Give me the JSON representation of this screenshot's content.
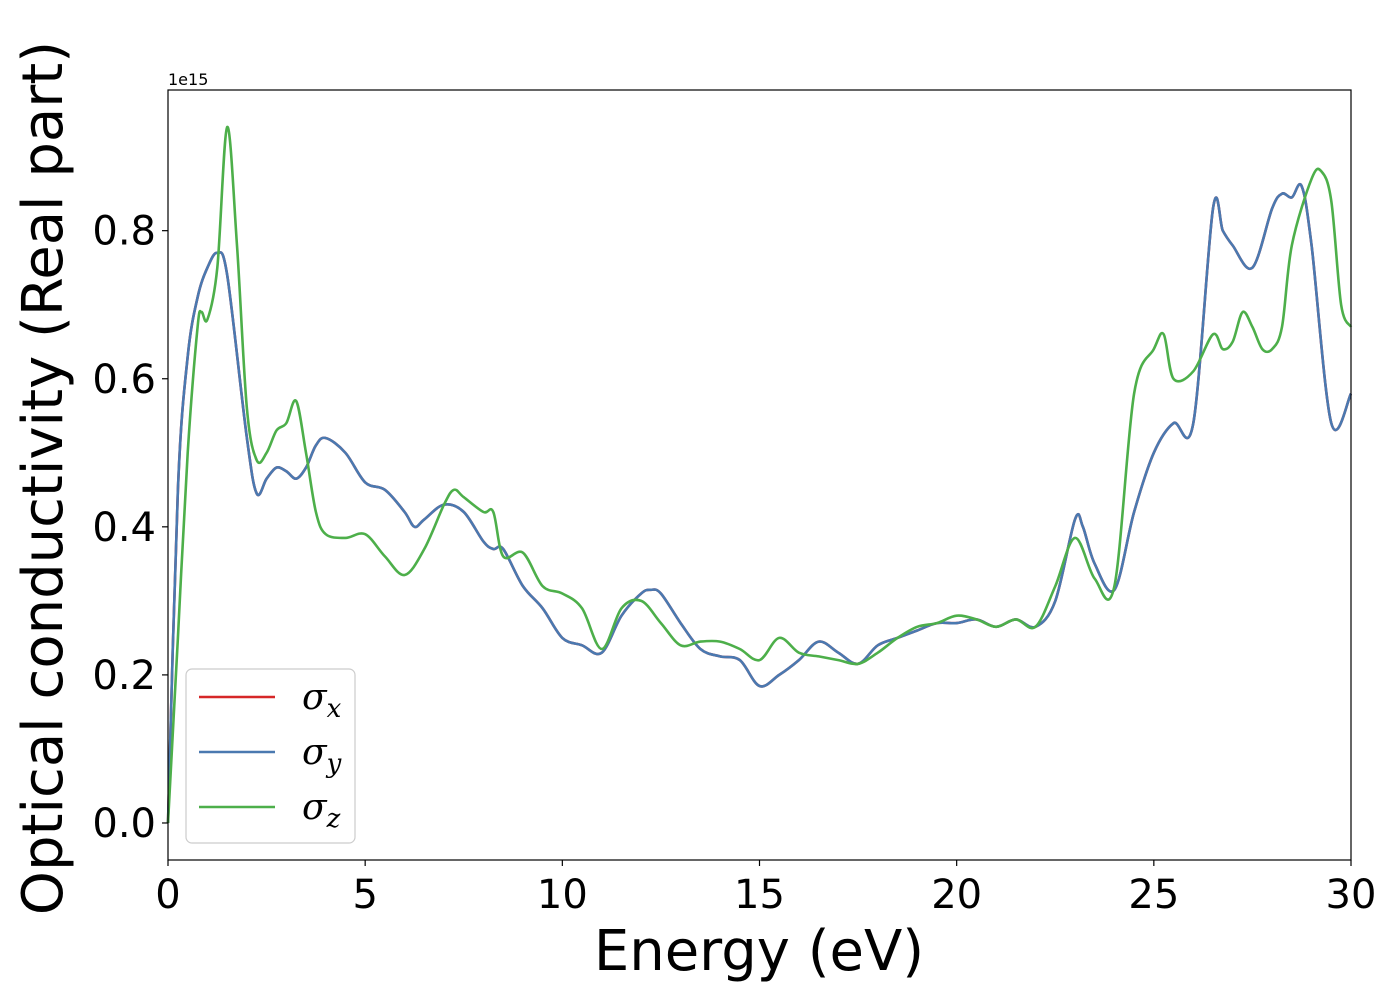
{
  "chart_data": {
    "type": "line",
    "title": "",
    "xlabel": "Energy (eV)",
    "ylabel": "Optical conductivity (Real part)",
    "y_offset_text": "1e15",
    "xlim": [
      0,
      30
    ],
    "ylim": [
      -0.05,
      0.99
    ],
    "xticks": [
      0,
      5,
      10,
      15,
      20,
      25,
      30
    ],
    "xtick_labels": [
      "0",
      "5",
      "10",
      "15",
      "20",
      "25",
      "30"
    ],
    "yticks": [
      0.0,
      0.2,
      0.4,
      0.6,
      0.8
    ],
    "ytick_labels": [
      "0.0",
      "0.2",
      "0.4",
      "0.6",
      "0.8"
    ],
    "grid": false,
    "legend_position": "lower-left",
    "series": [
      {
        "name": "σx",
        "base": "σ",
        "subscript": "x",
        "color": "#d62728",
        "x": [
          0,
          0.25,
          0.5,
          0.75,
          1.0,
          1.25,
          1.5,
          2.0,
          2.25,
          2.5,
          2.75,
          3.0,
          3.25,
          3.5,
          3.75,
          4.0,
          4.5,
          5.0,
          5.5,
          6.0,
          6.25,
          6.5,
          7.0,
          7.5,
          8.0,
          8.25,
          8.5,
          9.0,
          9.5,
          10.0,
          10.5,
          11.0,
          11.5,
          12.0,
          12.25,
          12.5,
          13.0,
          13.5,
          14.0,
          14.5,
          15.0,
          15.5,
          16.0,
          16.5,
          17.0,
          17.5,
          18.0,
          18.5,
          19.0,
          19.5,
          20.0,
          20.5,
          21.0,
          21.5,
          22.0,
          22.5,
          23.0,
          23.2,
          23.5,
          24.0,
          24.5,
          25.0,
          25.5,
          26.0,
          26.5,
          26.75,
          27.0,
          27.5,
          28.0,
          28.25,
          28.5,
          28.75,
          29.0,
          29.5,
          30.0
        ],
        "y": [
          0.0,
          0.45,
          0.63,
          0.71,
          0.75,
          0.77,
          0.74,
          0.52,
          0.445,
          0.465,
          0.48,
          0.475,
          0.465,
          0.48,
          0.51,
          0.52,
          0.5,
          0.46,
          0.45,
          0.42,
          0.4,
          0.41,
          0.43,
          0.42,
          0.38,
          0.37,
          0.37,
          0.32,
          0.29,
          0.25,
          0.24,
          0.23,
          0.28,
          0.31,
          0.315,
          0.31,
          0.27,
          0.235,
          0.225,
          0.22,
          0.185,
          0.2,
          0.22,
          0.245,
          0.23,
          0.215,
          0.24,
          0.25,
          0.26,
          0.27,
          0.27,
          0.275,
          0.265,
          0.275,
          0.265,
          0.3,
          0.41,
          0.4,
          0.35,
          0.315,
          0.42,
          0.5,
          0.54,
          0.54,
          0.83,
          0.8,
          0.78,
          0.75,
          0.83,
          0.85,
          0.845,
          0.86,
          0.78,
          0.54,
          0.58
        ]
      },
      {
        "name": "σy",
        "base": "σ",
        "subscript": "y",
        "color": "#4a79b0",
        "x": [
          0,
          0.25,
          0.5,
          0.75,
          1.0,
          1.25,
          1.5,
          2.0,
          2.25,
          2.5,
          2.75,
          3.0,
          3.25,
          3.5,
          3.75,
          4.0,
          4.5,
          5.0,
          5.5,
          6.0,
          6.25,
          6.5,
          7.0,
          7.5,
          8.0,
          8.25,
          8.5,
          9.0,
          9.5,
          10.0,
          10.5,
          11.0,
          11.5,
          12.0,
          12.25,
          12.5,
          13.0,
          13.5,
          14.0,
          14.5,
          15.0,
          15.5,
          16.0,
          16.5,
          17.0,
          17.5,
          18.0,
          18.5,
          19.0,
          19.5,
          20.0,
          20.5,
          21.0,
          21.5,
          22.0,
          22.5,
          23.0,
          23.2,
          23.5,
          24.0,
          24.5,
          25.0,
          25.5,
          26.0,
          26.5,
          26.75,
          27.0,
          27.5,
          28.0,
          28.25,
          28.5,
          28.75,
          29.0,
          29.5,
          30.0
        ],
        "y": [
          0.0,
          0.45,
          0.63,
          0.71,
          0.75,
          0.77,
          0.74,
          0.52,
          0.445,
          0.465,
          0.48,
          0.475,
          0.465,
          0.48,
          0.51,
          0.52,
          0.5,
          0.46,
          0.45,
          0.42,
          0.4,
          0.41,
          0.43,
          0.42,
          0.38,
          0.37,
          0.37,
          0.32,
          0.29,
          0.25,
          0.24,
          0.23,
          0.28,
          0.31,
          0.315,
          0.31,
          0.27,
          0.235,
          0.225,
          0.22,
          0.185,
          0.2,
          0.22,
          0.245,
          0.23,
          0.215,
          0.24,
          0.25,
          0.26,
          0.27,
          0.27,
          0.275,
          0.265,
          0.275,
          0.265,
          0.3,
          0.41,
          0.4,
          0.35,
          0.315,
          0.42,
          0.5,
          0.54,
          0.54,
          0.83,
          0.8,
          0.78,
          0.75,
          0.83,
          0.85,
          0.845,
          0.86,
          0.78,
          0.54,
          0.58
        ]
      },
      {
        "name": "σz",
        "base": "σ",
        "subscript": "z",
        "color": "#4daf4a",
        "x": [
          0,
          0.25,
          0.5,
          0.75,
          0.85,
          1.0,
          1.25,
          1.5,
          1.75,
          2.0,
          2.25,
          2.5,
          2.75,
          3.0,
          3.25,
          3.5,
          3.75,
          4.0,
          4.5,
          5.0,
          5.5,
          6.0,
          6.5,
          7.0,
          7.25,
          7.5,
          8.0,
          8.25,
          8.5,
          9.0,
          9.5,
          10.0,
          10.5,
          11.0,
          11.5,
          12.0,
          12.5,
          13.0,
          13.5,
          14.0,
          14.5,
          15.0,
          15.5,
          16.0,
          16.5,
          17.0,
          17.5,
          18.0,
          18.5,
          19.0,
          19.5,
          20.0,
          20.5,
          21.0,
          21.5,
          22.0,
          22.5,
          23.0,
          23.5,
          24.0,
          24.5,
          25.0,
          25.25,
          25.5,
          26.0,
          26.5,
          26.75,
          27.0,
          27.25,
          27.5,
          27.75,
          28.0,
          28.25,
          28.5,
          29.0,
          29.25,
          29.5,
          29.75,
          30.0
        ],
        "y": [
          0.0,
          0.25,
          0.5,
          0.67,
          0.69,
          0.68,
          0.75,
          0.94,
          0.78,
          0.56,
          0.49,
          0.5,
          0.53,
          0.54,
          0.57,
          0.5,
          0.42,
          0.39,
          0.385,
          0.39,
          0.36,
          0.335,
          0.37,
          0.43,
          0.45,
          0.44,
          0.42,
          0.42,
          0.36,
          0.365,
          0.32,
          0.31,
          0.29,
          0.235,
          0.29,
          0.3,
          0.27,
          0.24,
          0.245,
          0.245,
          0.235,
          0.22,
          0.25,
          0.23,
          0.225,
          0.22,
          0.215,
          0.23,
          0.25,
          0.265,
          0.27,
          0.28,
          0.275,
          0.265,
          0.275,
          0.265,
          0.32,
          0.385,
          0.33,
          0.32,
          0.58,
          0.64,
          0.66,
          0.6,
          0.61,
          0.66,
          0.64,
          0.65,
          0.69,
          0.67,
          0.64,
          0.64,
          0.67,
          0.78,
          0.87,
          0.88,
          0.84,
          0.7,
          0.67
        ]
      }
    ]
  }
}
